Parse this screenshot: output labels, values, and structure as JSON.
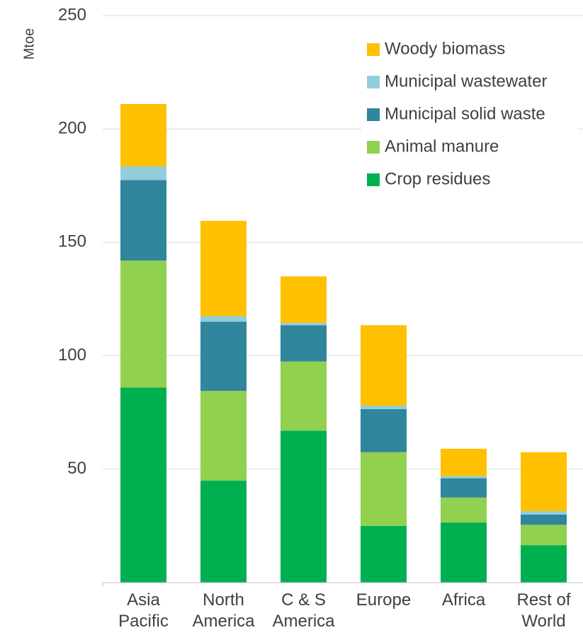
{
  "chart_data": {
    "type": "stacked_bar",
    "y_label": "Mtoe",
    "categories": [
      "Asia Pacific",
      "North America",
      "C & S America",
      "Europe",
      "Africa",
      "Rest of World"
    ],
    "series": [
      {
        "name": "Crop residues",
        "color": "#00b050",
        "values": [
          86,
          45,
          67,
          25,
          26.5,
          16.5
        ]
      },
      {
        "name": "Animal manure",
        "color": "#92d050",
        "values": [
          56,
          39.5,
          30.5,
          32.5,
          11,
          9
        ]
      },
      {
        "name": "Municipal solid waste",
        "color": "#31859c",
        "values": [
          35.5,
          30.5,
          16,
          19,
          8.5,
          4.5
        ]
      },
      {
        "name": "Municipal wastewater",
        "color": "#92cddc",
        "values": [
          6,
          2.5,
          1,
          1.5,
          1,
          1.5
        ]
      },
      {
        "name": "Woody biomass",
        "color": "#ffc000",
        "values": [
          27.5,
          42,
          20.5,
          35.5,
          12,
          26
        ]
      }
    ],
    "ylim": [
      0,
      250
    ],
    "yticks": [
      50,
      100,
      150,
      200,
      250
    ],
    "grid": true,
    "legend": "top-right"
  }
}
